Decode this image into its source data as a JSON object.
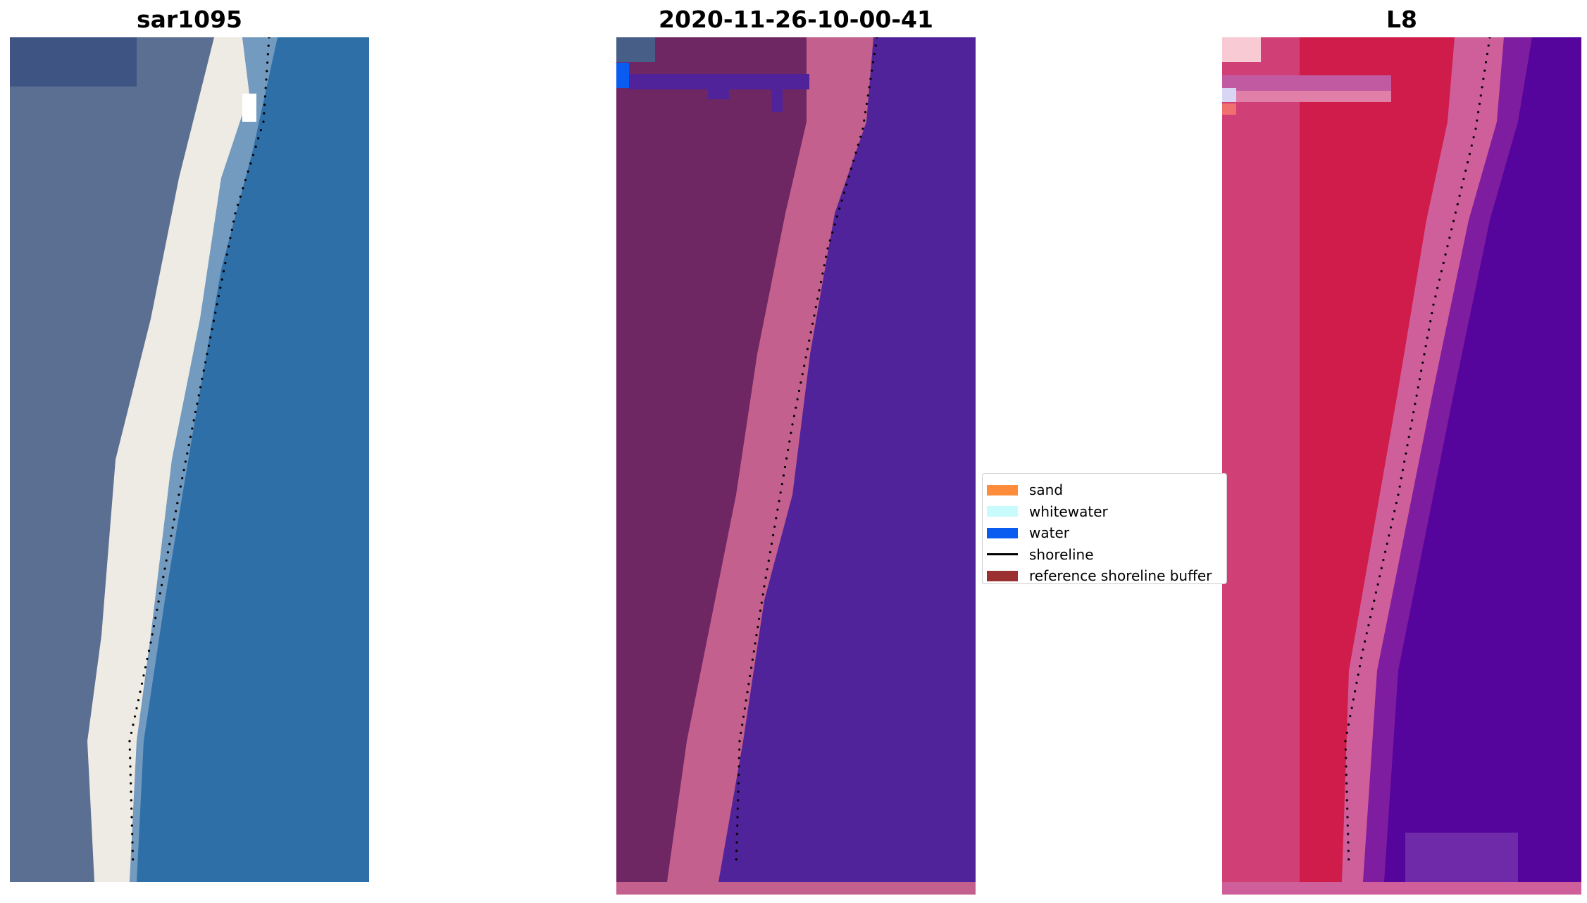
{
  "panels": [
    {
      "title": "sar1095"
    },
    {
      "title": "2020-11-26-10-00-41"
    },
    {
      "title": "L8"
    }
  ],
  "legend": {
    "items": [
      {
        "label": "sand",
        "color": "#ff8c3a",
        "kind": "patch"
      },
      {
        "label": "whitewater",
        "color": "#c8fbfb",
        "kind": "patch"
      },
      {
        "label": "water",
        "color": "#0a5cf0",
        "kind": "patch"
      },
      {
        "label": "shoreline",
        "color": "#000000",
        "kind": "line"
      },
      {
        "label": "reference shoreline buffer",
        "color": "#9a3030",
        "kind": "patch"
      }
    ]
  },
  "colors": {
    "rgb_land": "#5b6f92",
    "rgb_beach": "#eeeae4",
    "rgb_water": "#2f6fa8",
    "class_land": "#6e2762",
    "class_beach": "#c4608e",
    "class_water": "#51239a",
    "l8_land": "#d01c4a",
    "l8_beach": "#cf5f9a",
    "l8_water": "#55049c"
  }
}
